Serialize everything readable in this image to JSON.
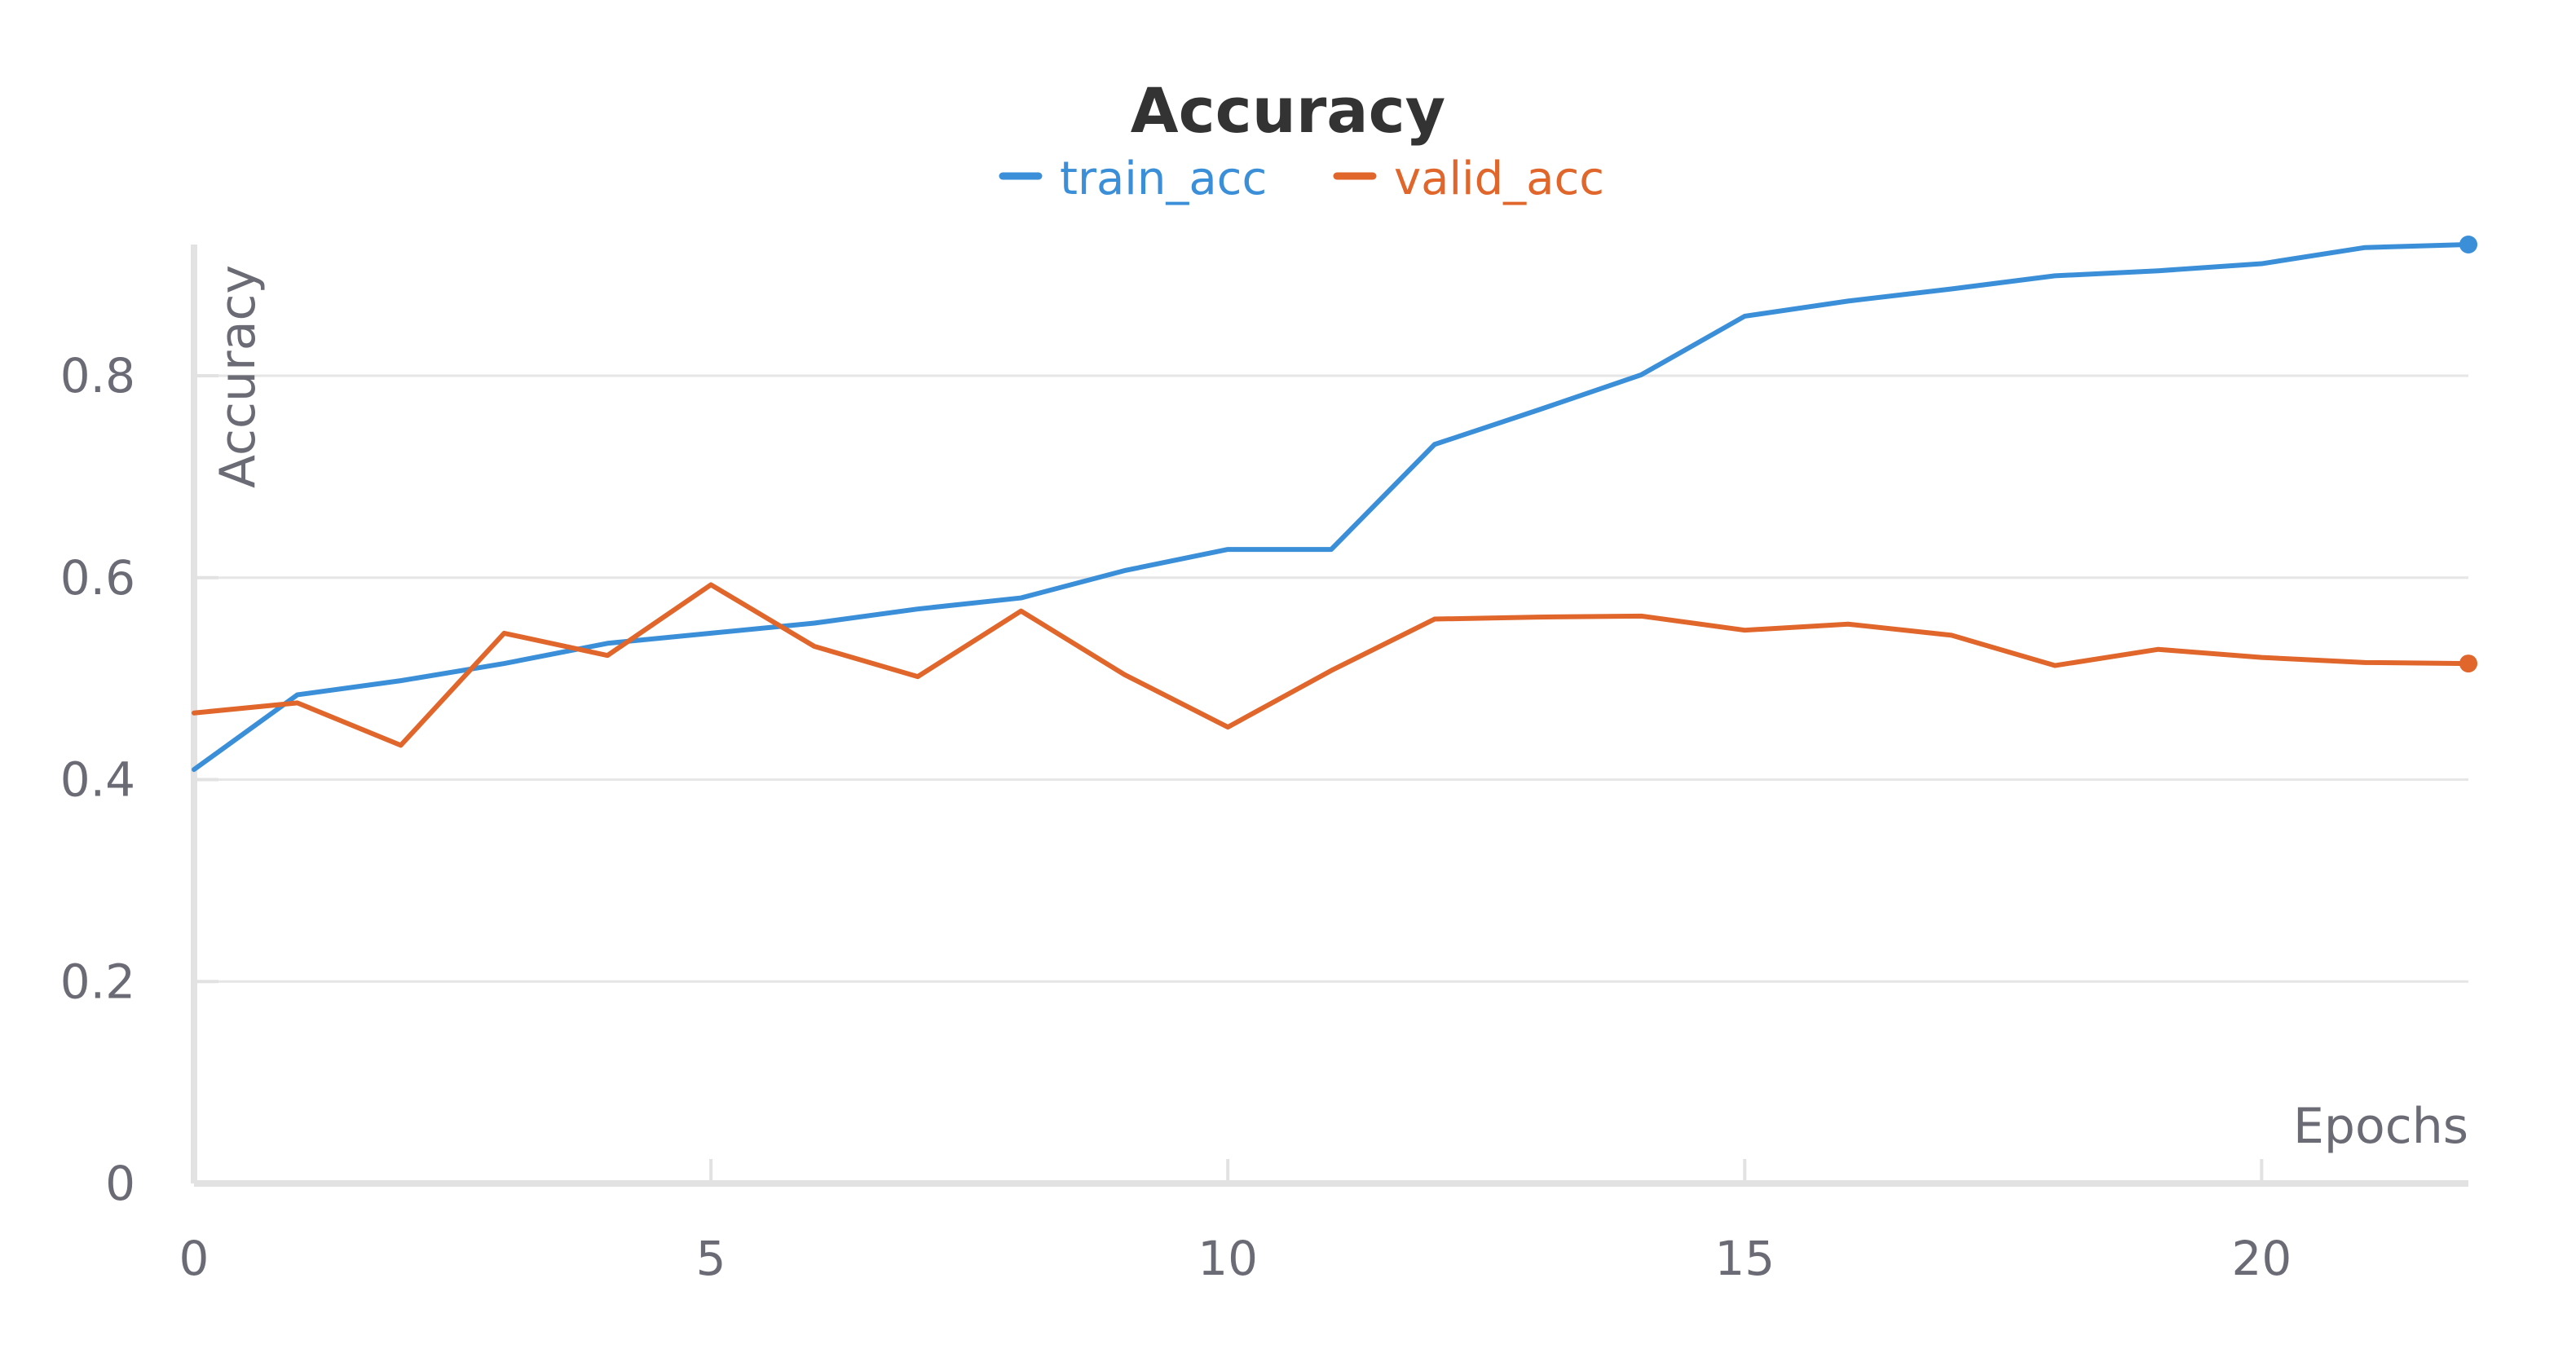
{
  "chart_data": {
    "type": "line",
    "title": "Accuracy",
    "xlabel": "Epochs",
    "ylabel": "Accuracy",
    "xlim": [
      0,
      22
    ],
    "ylim": [
      0,
      0.93
    ],
    "xticks": [
      0,
      5,
      10,
      15,
      20
    ],
    "xtick_labels": [
      "0",
      "5",
      "10",
      "15",
      "20"
    ],
    "yticks": [
      0,
      0.2,
      0.4,
      0.6,
      0.8
    ],
    "ytick_labels": [
      "0",
      "0.2",
      "0.4",
      "0.6",
      "0.8"
    ],
    "grid": true,
    "legend_position": "top-center",
    "x": [
      0,
      1,
      2,
      3,
      4,
      5,
      6,
      7,
      8,
      9,
      10,
      11,
      12,
      13,
      14,
      15,
      16,
      17,
      18,
      19,
      20,
      21,
      22
    ],
    "series": [
      {
        "name": "train_acc",
        "color": "#3a8fd8",
        "values": [
          0.41,
          0.484,
          0.498,
          0.515,
          0.535,
          0.545,
          0.555,
          0.569,
          0.58,
          0.607,
          0.628,
          0.628,
          0.732,
          0.766,
          0.801,
          0.859,
          0.874,
          0.886,
          0.899,
          0.904,
          0.911,
          0.927,
          0.93
        ]
      },
      {
        "name": "valid_acc",
        "color": "#e0662c",
        "values": [
          0.466,
          0.476,
          0.434,
          0.545,
          0.523,
          0.593,
          0.532,
          0.502,
          0.567,
          0.504,
          0.452,
          0.508,
          0.559,
          0.561,
          0.562,
          0.548,
          0.554,
          0.543,
          0.513,
          0.529,
          0.521,
          0.516,
          0.515
        ]
      }
    ]
  }
}
